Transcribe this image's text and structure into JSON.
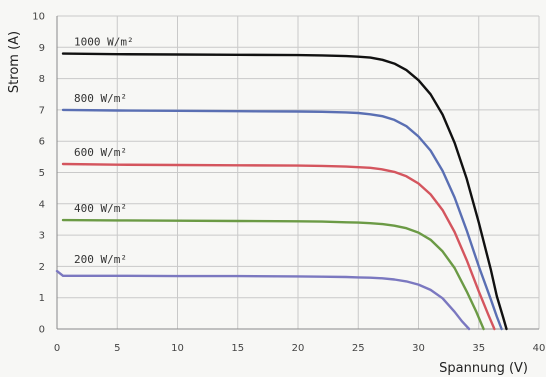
{
  "chart_data": {
    "type": "line",
    "title": "",
    "xlabel": "Spannung (V)",
    "ylabel": "Strom (A)",
    "xlim": [
      0,
      40
    ],
    "ylim": [
      0,
      10
    ],
    "x_ticks": [
      0,
      5,
      10,
      15,
      20,
      25,
      30,
      35,
      40
    ],
    "y_ticks": [
      0,
      1,
      2,
      3,
      4,
      5,
      6,
      7,
      8,
      9,
      10
    ],
    "grid": true,
    "legend": "inline labels above each curve",
    "series": [
      {
        "name": "1000 W/m²",
        "color": "#111111",
        "x": [
          0.5,
          5,
          10,
          15,
          20,
          22,
          24,
          25,
          26,
          27,
          28,
          29,
          30,
          31,
          32,
          33,
          34,
          35,
          36,
          36.5,
          37,
          37.3
        ],
        "y": [
          8.8,
          8.78,
          8.77,
          8.76,
          8.75,
          8.74,
          8.72,
          8.7,
          8.67,
          8.6,
          8.48,
          8.27,
          7.95,
          7.5,
          6.85,
          5.95,
          4.8,
          3.4,
          1.9,
          1.05,
          0.4,
          0.0
        ]
      },
      {
        "name": "800 W/m²",
        "color": "#5a6fb3",
        "x": [
          0.5,
          5,
          10,
          15,
          20,
          22,
          24,
          25,
          26,
          27,
          28,
          29,
          30,
          31,
          32,
          33,
          34,
          35,
          36,
          36.5,
          36.9
        ],
        "y": [
          7.0,
          6.98,
          6.97,
          6.96,
          6.95,
          6.94,
          6.92,
          6.9,
          6.86,
          6.8,
          6.68,
          6.48,
          6.15,
          5.7,
          5.05,
          4.2,
          3.15,
          2.0,
          0.95,
          0.4,
          0.0
        ]
      },
      {
        "name": "600 W/m²",
        "color": "#d4555e",
        "x": [
          0.5,
          5,
          10,
          15,
          20,
          22,
          24,
          25,
          26,
          27,
          28,
          29,
          30,
          31,
          32,
          33,
          34,
          35,
          35.8,
          36.3
        ],
        "y": [
          5.27,
          5.25,
          5.24,
          5.23,
          5.22,
          5.21,
          5.19,
          5.17,
          5.15,
          5.1,
          5.02,
          4.88,
          4.65,
          4.3,
          3.8,
          3.1,
          2.2,
          1.2,
          0.45,
          0.0
        ]
      },
      {
        "name": "400 W/m²",
        "color": "#6b9a45",
        "x": [
          0.5,
          5,
          10,
          15,
          20,
          22,
          24,
          25,
          26,
          27,
          28,
          29,
          30,
          31,
          32,
          33,
          34,
          34.8,
          35.4
        ],
        "y": [
          3.48,
          3.47,
          3.46,
          3.45,
          3.44,
          3.43,
          3.41,
          3.4,
          3.38,
          3.35,
          3.3,
          3.22,
          3.08,
          2.85,
          2.48,
          1.95,
          1.2,
          0.55,
          0.0
        ]
      },
      {
        "name": "200 W/m²",
        "color": "#7b78c0",
        "x": [
          0.0,
          0.5,
          5,
          10,
          15,
          20,
          22,
          24,
          25,
          26,
          27,
          28,
          29,
          30,
          31,
          32,
          33,
          33.6,
          34.2
        ],
        "y": [
          1.85,
          1.7,
          1.7,
          1.69,
          1.69,
          1.68,
          1.67,
          1.66,
          1.65,
          1.64,
          1.62,
          1.58,
          1.52,
          1.42,
          1.25,
          0.98,
          0.55,
          0.25,
          0.0
        ]
      }
    ]
  }
}
